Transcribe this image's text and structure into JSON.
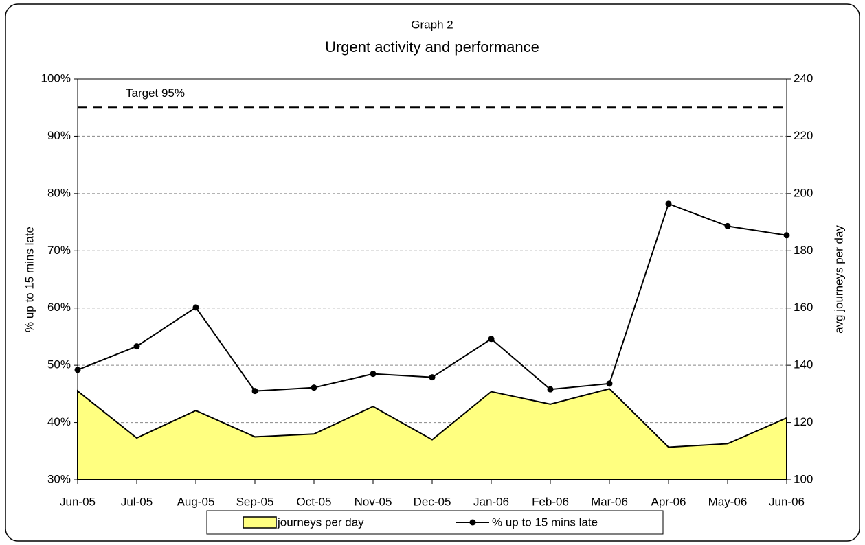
{
  "chart_data": {
    "type": "area_line",
    "title": "Graph 2",
    "subtitle": "Urgent activity and performance",
    "ylabel": "% up to 15 mins late",
    "y2label": "avg journeys per day",
    "categories": [
      "Jun-05",
      "Jul-05",
      "Aug-05",
      "Sep-05",
      "Oct-05",
      "Nov-05",
      "Dec-05",
      "Jan-06",
      "Feb-06",
      "Mar-06",
      "Apr-06",
      "May-06",
      "Jun-06"
    ],
    "series": [
      {
        "name": "journeys per day",
        "color": "#ffff80",
        "axis": "y2",
        "values": [
          131,
          114.6,
          124.2,
          115,
          116,
          125.6,
          114,
          130.8,
          126.4,
          131.8,
          111.4,
          112.6,
          121.6
        ]
      },
      {
        "name": "% up to 15 mins late",
        "color": "#000000",
        "axis": "y",
        "values": [
          49.2,
          53.3,
          60.1,
          45.5,
          46.1,
          48.5,
          47.9,
          54.6,
          45.8,
          46.8,
          78.2,
          74.3,
          72.7
        ]
      }
    ],
    "target": {
      "value": 95,
      "label": "Target 95%"
    },
    "ylim": [
      30,
      100
    ],
    "yticks": [
      {
        "value": 30,
        "label": "30%"
      },
      {
        "value": 40,
        "label": "40%"
      },
      {
        "value": 50,
        "label": "50%"
      },
      {
        "value": 60,
        "label": "60%"
      },
      {
        "value": 70,
        "label": "70%"
      },
      {
        "value": 80,
        "label": "80%"
      },
      {
        "value": 90,
        "label": "90%"
      },
      {
        "value": 100,
        "label": "100%"
      }
    ],
    "y2lim": [
      100,
      240
    ],
    "y2ticks": [
      100,
      120,
      140,
      160,
      180,
      200,
      220,
      240
    ],
    "grid": true,
    "legend": "bottom"
  }
}
